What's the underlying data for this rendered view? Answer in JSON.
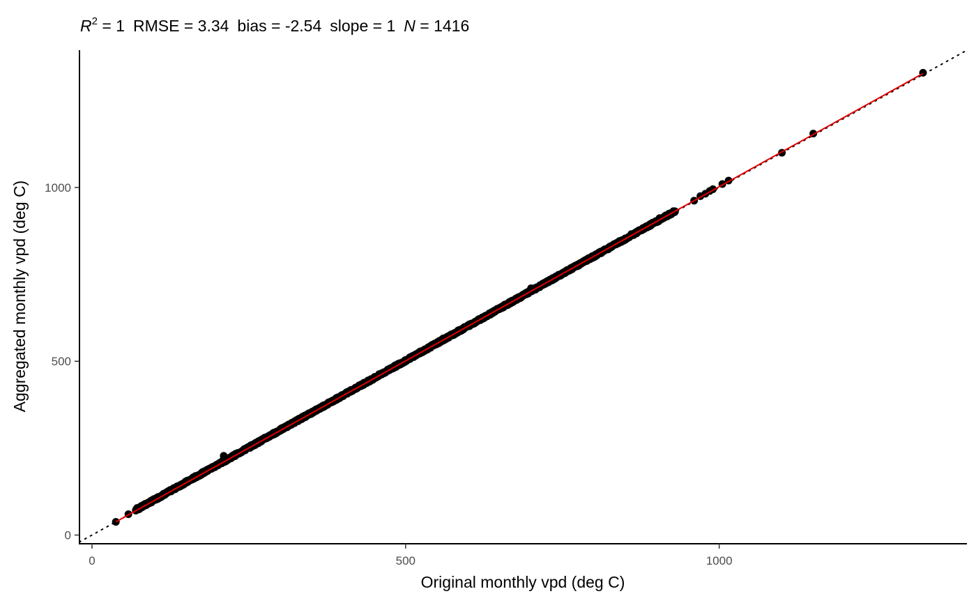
{
  "chart_data": {
    "type": "scatter",
    "title": {
      "r2_label": "R",
      "r2_sup": "2",
      "r2_value": " = 1",
      "rmse": "RMSE = 3.34",
      "bias": "bias = -2.54",
      "slope": "slope = 1",
      "n_label": "N",
      "n_value": " = 1416"
    },
    "xlabel": "Original monthly vpd (deg C)",
    "ylabel": "Aggregated monthly vpd (deg C)",
    "xlim": [
      -20,
      1395
    ],
    "ylim": [
      -25,
      1395
    ],
    "x_ticks": [
      0,
      500,
      1000
    ],
    "y_ticks": [
      0,
      500,
      1000
    ],
    "x_tick_labels": [
      "0",
      "500",
      "1000"
    ],
    "y_tick_labels": [
      "0",
      "500",
      "1000"
    ],
    "grid": false,
    "reference_line": {
      "type": "1:1",
      "style": "dotted",
      "color": "#000000"
    },
    "fit_line": {
      "color": "#e00000",
      "x": [
        38,
        1325
      ],
      "y": [
        38,
        1328
      ]
    },
    "series": [
      {
        "color": "#000000",
        "points_dense": {
          "x_start": 70,
          "x_end": 930,
          "count": 1380
        },
        "x": [
          38,
          58,
          72,
          85,
          210,
          335,
          560,
          700,
          860,
          872,
          905,
          915,
          920,
          960,
          970,
          978,
          985,
          990,
          1005,
          1015,
          1100,
          1150,
          1325
        ],
        "y": [
          38,
          60,
          78,
          90,
          228,
          340,
          566,
          710,
          866,
          876,
          912,
          920,
          925,
          962,
          975,
          982,
          990,
          995,
          1010,
          1020,
          1100,
          1155,
          1330
        ]
      }
    ]
  }
}
